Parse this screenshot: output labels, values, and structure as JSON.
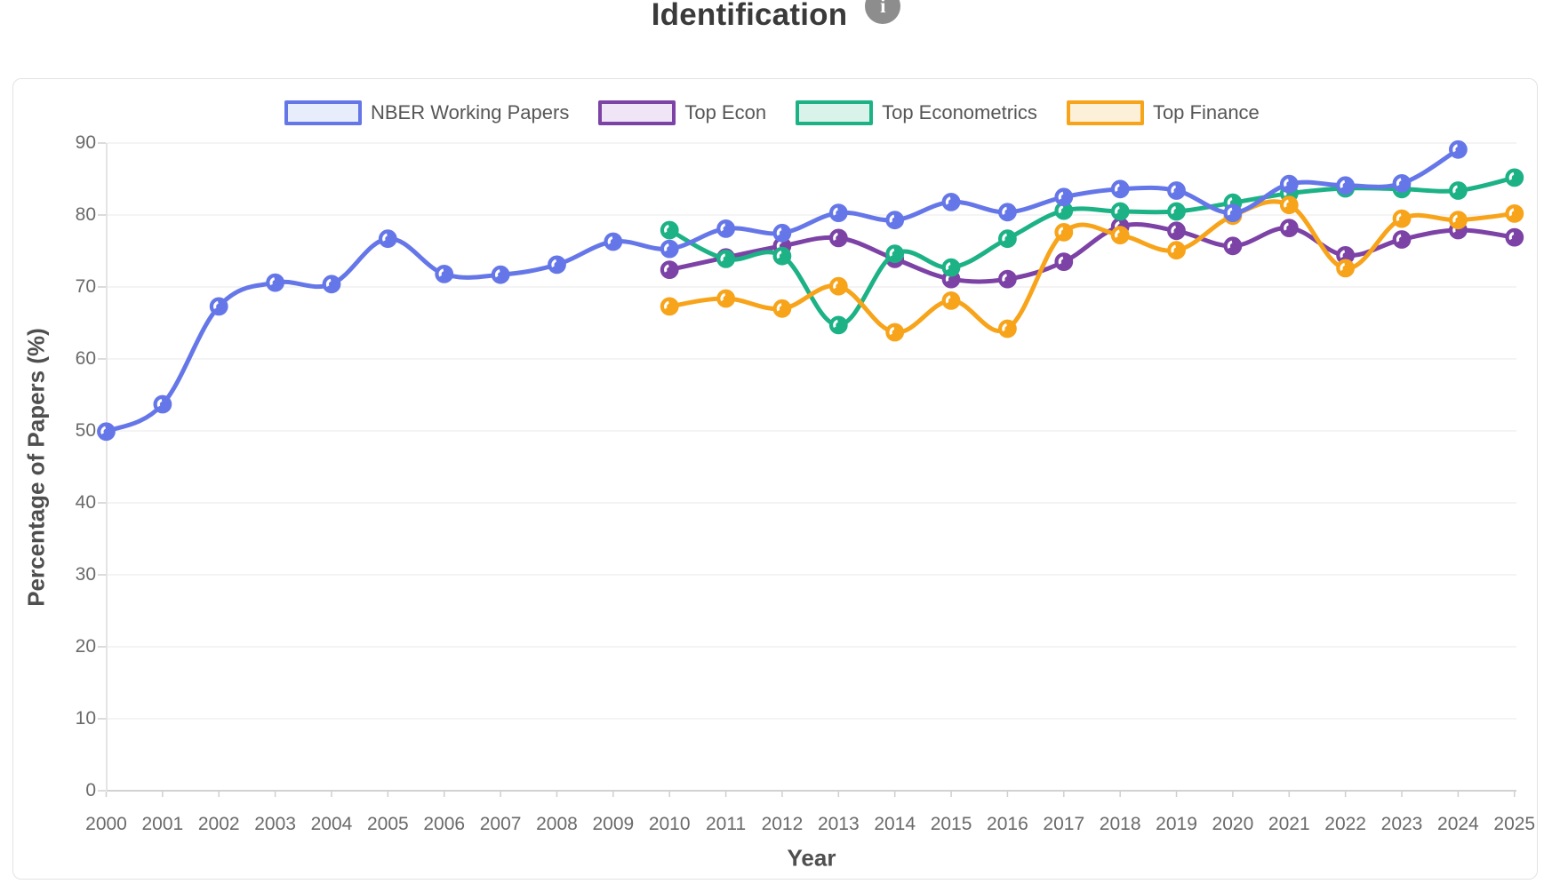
{
  "header": {
    "title": "Identification",
    "info_icon": "i"
  },
  "chart_data": {
    "type": "line",
    "title": "Identification",
    "xlabel": "Year",
    "ylabel": "Percentage of Papers (%)",
    "x": [
      2000,
      2001,
      2002,
      2003,
      2004,
      2005,
      2006,
      2007,
      2008,
      2009,
      2010,
      2011,
      2012,
      2013,
      2014,
      2015,
      2016,
      2017,
      2018,
      2019,
      2020,
      2021,
      2022,
      2023,
      2024,
      2025
    ],
    "yticks": [
      0,
      10,
      20,
      30,
      40,
      50,
      60,
      70,
      80,
      90
    ],
    "ylim": [
      0,
      90
    ],
    "grid": true,
    "legend_position": "top",
    "series": [
      {
        "name": "NBER Working Papers",
        "color": "#6577e8",
        "fill": "#e8edfb",
        "values": [
          49.9,
          53.7,
          67.3,
          70.6,
          70.4,
          76.7,
          71.8,
          71.7,
          73.1,
          76.3,
          75.3,
          78.1,
          77.5,
          80.3,
          79.3,
          81.8,
          80.4,
          82.5,
          83.6,
          83.4,
          80.3,
          84.3,
          84.1,
          84.4,
          89.1,
          null
        ]
      },
      {
        "name": "Top Econ",
        "color": "#7c42a5",
        "fill": "#efe5f7",
        "values": [
          null,
          null,
          null,
          null,
          null,
          null,
          null,
          null,
          null,
          null,
          72.4,
          74.1,
          75.7,
          76.8,
          73.9,
          71.1,
          71.1,
          73.5,
          78.4,
          77.8,
          75.7,
          78.2,
          74.4,
          76.6,
          77.9,
          76.9
        ]
      },
      {
        "name": "Top Econometrics",
        "color": "#1cb286",
        "fill": "#daf3ea",
        "values": [
          null,
          null,
          null,
          null,
          null,
          null,
          null,
          null,
          null,
          null,
          77.9,
          73.9,
          74.3,
          64.7,
          74.6,
          72.7,
          76.7,
          80.6,
          80.5,
          80.5,
          81.7,
          83.0,
          83.7,
          83.6,
          83.4,
          85.2
        ]
      },
      {
        "name": "Top Finance",
        "color": "#f7a41b",
        "fill": "#fdf0d8",
        "values": [
          null,
          null,
          null,
          null,
          null,
          null,
          null,
          null,
          null,
          null,
          67.3,
          68.4,
          67.0,
          70.1,
          63.7,
          68.1,
          64.2,
          77.6,
          77.2,
          75.1,
          79.9,
          81.4,
          72.6,
          79.5,
          79.3,
          80.2
        ]
      }
    ]
  }
}
